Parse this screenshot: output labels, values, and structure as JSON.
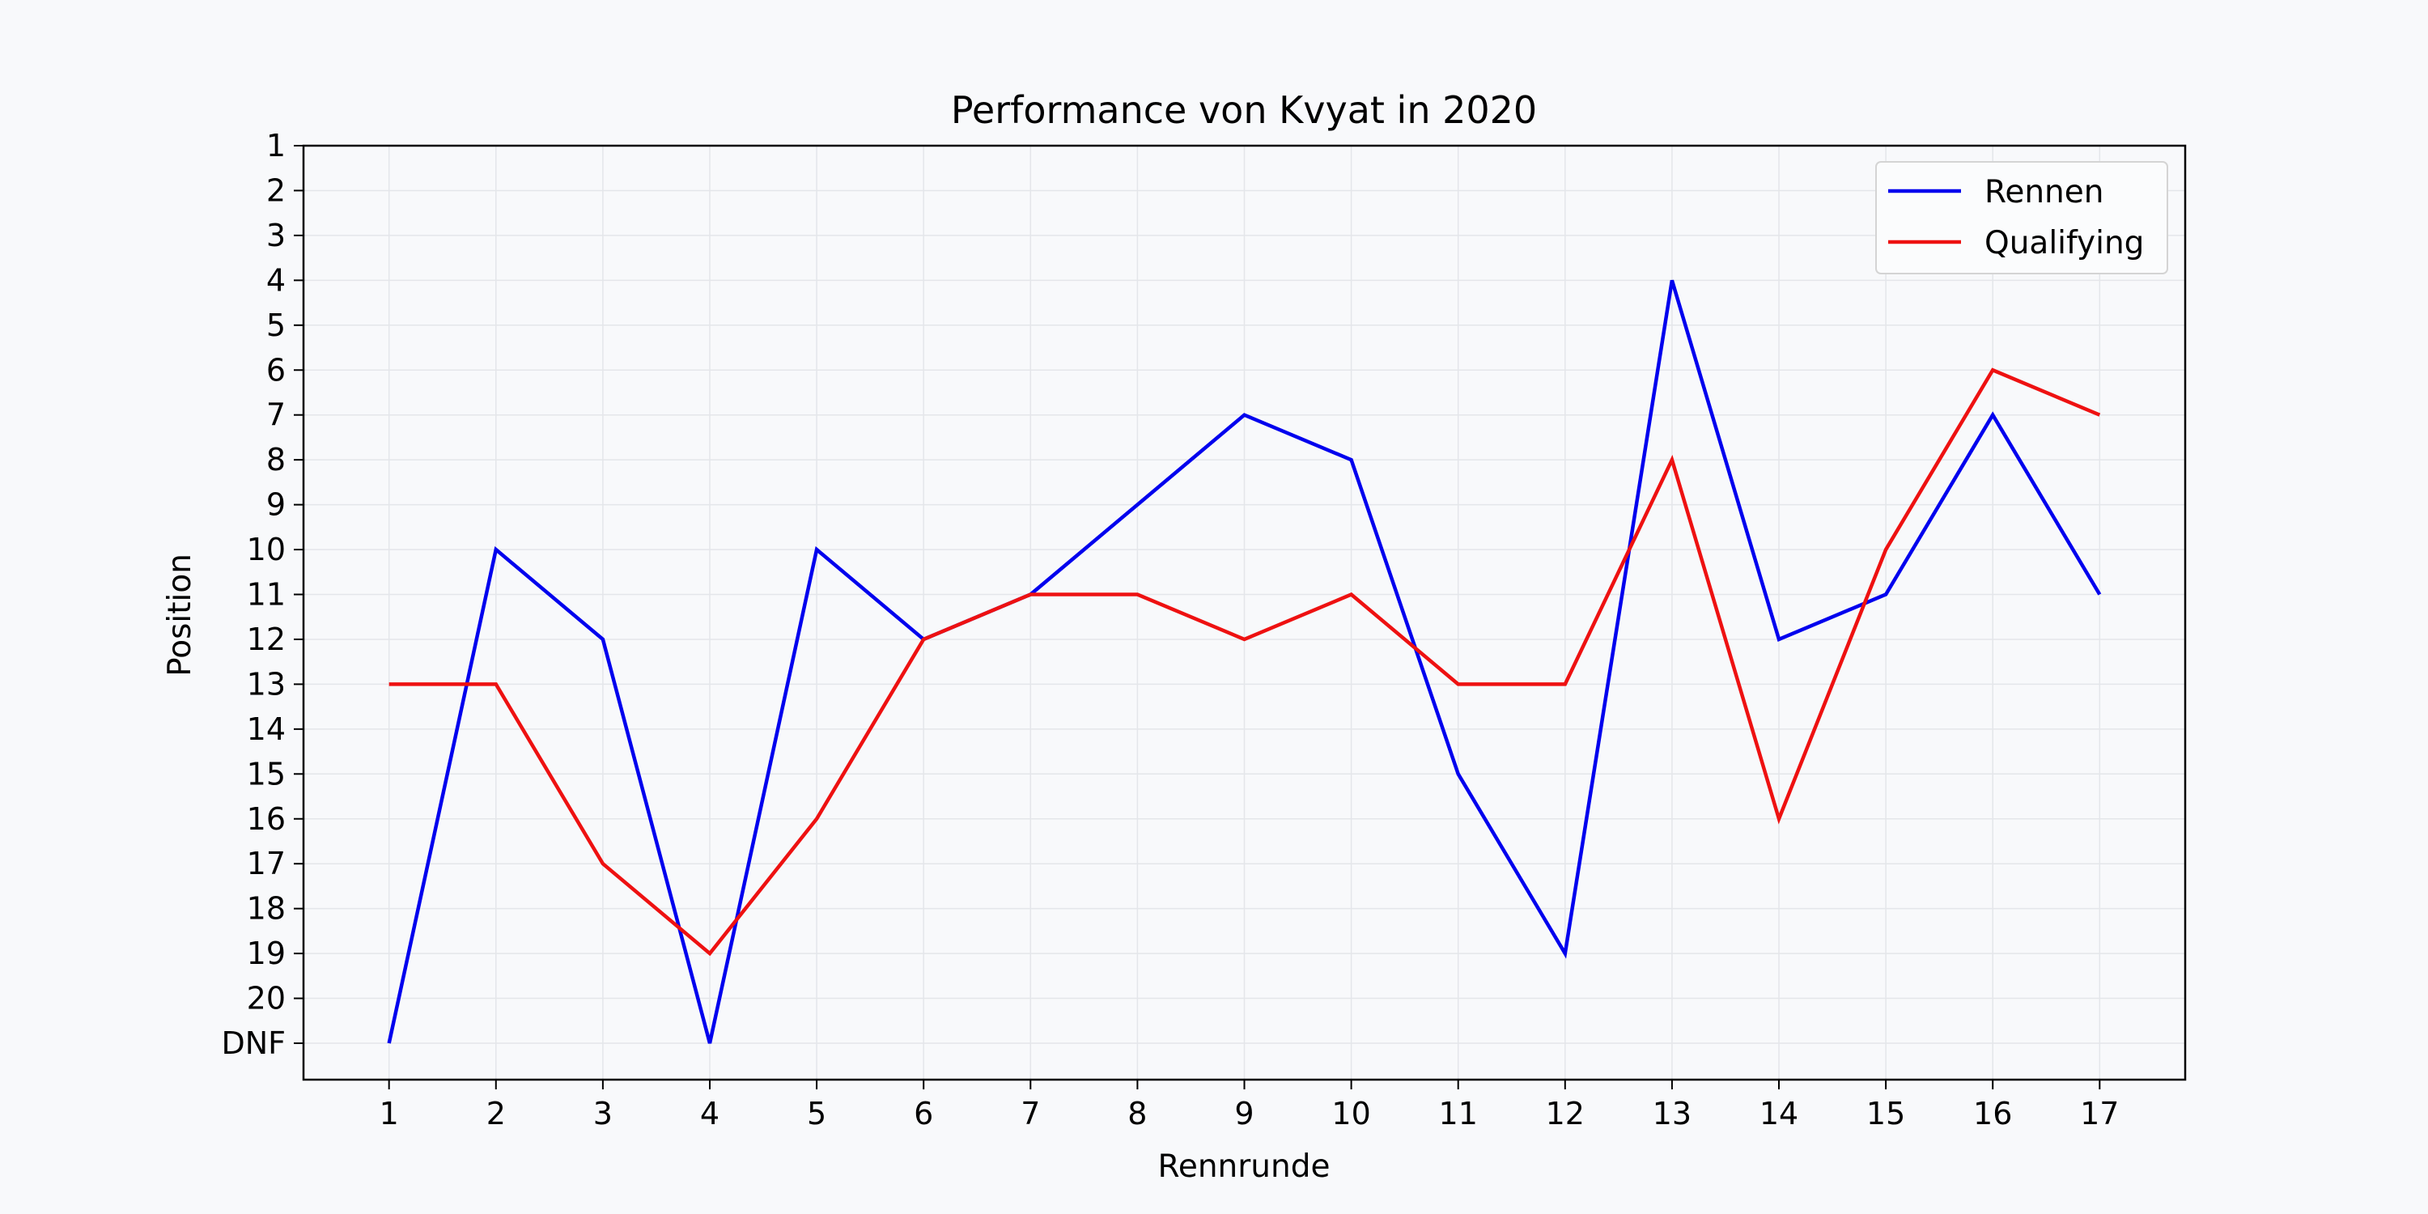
{
  "chart_data": {
    "type": "line",
    "title": "Performance von Kvyat in 2020",
    "xlabel": "Rennrunde",
    "ylabel": "Position",
    "x": [
      1,
      2,
      3,
      4,
      5,
      6,
      7,
      8,
      9,
      10,
      11,
      12,
      13,
      14,
      15,
      16,
      17
    ],
    "x_tick_labels": [
      "1",
      "2",
      "3",
      "4",
      "5",
      "6",
      "7",
      "8",
      "9",
      "10",
      "11",
      "12",
      "13",
      "14",
      "15",
      "16",
      "17"
    ],
    "y_tick_labels": [
      "1",
      "2",
      "3",
      "4",
      "5",
      "6",
      "7",
      "8",
      "9",
      "10",
      "11",
      "12",
      "13",
      "14",
      "15",
      "16",
      "17",
      "18",
      "19",
      "20",
      "DNF"
    ],
    "y_axis_inverted": true,
    "ylim": [
      1,
      21
    ],
    "xlim": [
      0.2,
      17.8
    ],
    "grid": true,
    "legend_position": "top-right",
    "series": [
      {
        "name": "Rennen",
        "color": "#0000ee",
        "values": [
          "DNF",
          10,
          12,
          "DNF",
          10,
          12,
          11,
          9,
          7,
          8,
          15,
          19,
          4,
          12,
          11,
          7,
          11
        ]
      },
      {
        "name": "Qualifying",
        "color": "#ee1111",
        "values": [
          13,
          13,
          17,
          19,
          16,
          12,
          11,
          11,
          12,
          11,
          13,
          13,
          8,
          16,
          10,
          6,
          7
        ]
      }
    ]
  }
}
